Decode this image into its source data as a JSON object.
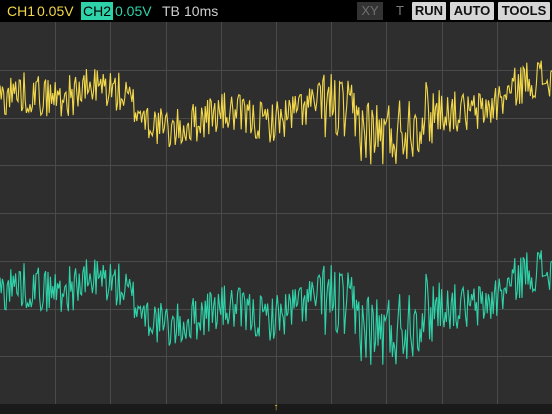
{
  "topbar": {
    "ch1_label": "CH1",
    "ch1_scale": "0.05V",
    "ch2_label": "CH2",
    "ch2_scale": "0.05V",
    "tb_label": "TB",
    "tb_value": "10ms",
    "xy_label": "XY",
    "t_label": "T",
    "run_label": "RUN",
    "auto_label": "AUTO",
    "tools_label": "TOOLS"
  },
  "colors": {
    "ch1": "#f2d84a",
    "ch2": "#2fd3a9",
    "grid": "#4a4a4a",
    "background": "#2e2e2e"
  },
  "trigger_marker": "↑"
}
